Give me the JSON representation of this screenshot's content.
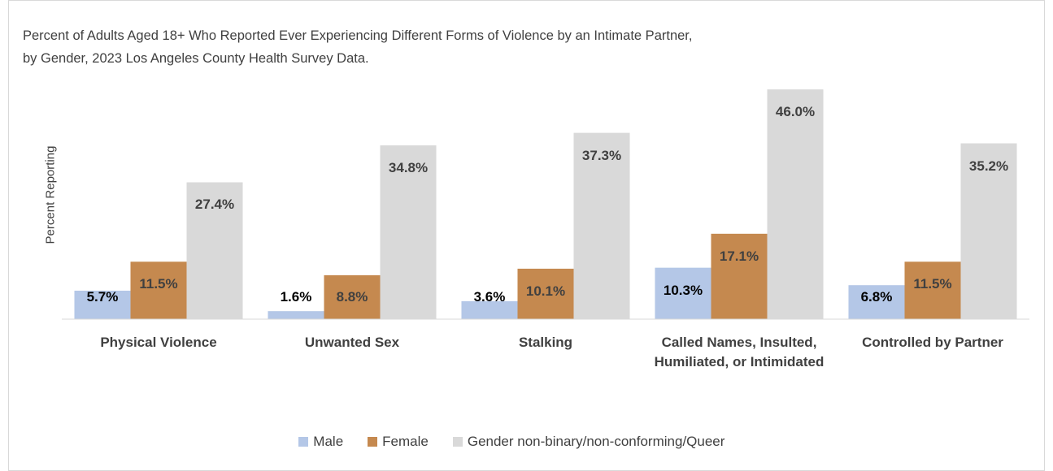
{
  "chart_data": {
    "type": "bar",
    "title": "Percent of Adults Aged 18+ Who Reported Ever Experiencing Different Forms of Violence by an Intimate Partner, by Gender, 2023 Los Angeles County Health Survey Data.",
    "ylabel": "Percent Reporting",
    "categories": [
      "Physical Violence",
      "Unwanted Sex",
      "Stalking",
      "Called Names, Insulted, Humiliated, or Intimidated",
      "Controlled by Partner"
    ],
    "series": [
      {
        "name": "Male",
        "color": "#b4c7e7",
        "values": [
          5.7,
          1.6,
          3.6,
          10.3,
          6.8
        ],
        "value_labels": [
          "5.7%",
          "1.6%",
          "3.6%",
          "10.3%",
          "6.8%"
        ]
      },
      {
        "name": "Female",
        "color": "#c5894f",
        "values": [
          11.5,
          8.8,
          10.1,
          17.1,
          11.5
        ],
        "value_labels": [
          "11.5%",
          "8.8%",
          "10.1%",
          "17.1%",
          "11.5%"
        ]
      },
      {
        "name": "Gender non-binary/non-conforming/Queer",
        "color": "#d9d9d9",
        "values": [
          27.4,
          34.8,
          37.3,
          46.0,
          35.2
        ],
        "value_labels": [
          "27.4%",
          "34.8%",
          "37.3%",
          "46.0%",
          "35.2%"
        ]
      }
    ],
    "ylim": [
      0,
      50
    ],
    "grid": false,
    "legend": "bottom"
  }
}
